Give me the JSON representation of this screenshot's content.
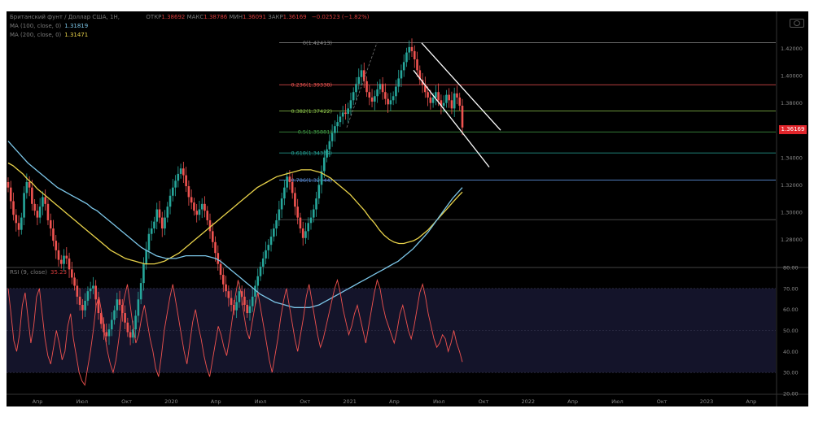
{
  "header": {
    "symbol": "Британский фунт / Доллар США, 1Н,",
    "open_label": "ОТКР",
    "open": "1.38692",
    "high_label": "МАКС",
    "high": "1.38786",
    "low_label": "МИН",
    "low": "1.36091",
    "close_label": "ЗАКР",
    "close": "1.36169",
    "change": "−0.02523",
    "change_pct": "(−1.82%)",
    "ma100_label": "MA (100, close, 0)",
    "ma100_value": "1.31819",
    "ma200_label": "MA (200, close, 0)",
    "ma200_value": "1.31471",
    "rsi_label": "RSI (9, close)",
    "rsi_value": "35.23"
  },
  "last_price_tag": "1.36169",
  "colors": {
    "up": "#26a69a",
    "down": "#ef5350",
    "ma100": "#7cc6e8",
    "ma200": "#e8d24a",
    "rsi": "#f0524f",
    "price_tag": "#e0252b"
  },
  "chart_data": [
    {
      "type": "candlestick",
      "symbol": "GBPUSD",
      "ylim": [
        1.26,
        1.44
      ],
      "y_ticks": [
        "1.42000",
        "1.40000",
        "1.38000",
        "1.36000",
        "1.34000",
        "1.32000",
        "1.30000",
        "1.28000"
      ],
      "x_ticks": [
        "Апр",
        "Июл",
        "Окт",
        "2020",
        "Апр",
        "Июл",
        "Окт",
        "2021",
        "Апр",
        "Июл",
        "Окт",
        "2022",
        "Апр",
        "Июл",
        "Окт",
        "2023",
        "Апр"
      ],
      "fib_levels": [
        {
          "label": "0(1.42413)",
          "value": 1.42413,
          "color": "#8a8a8a"
        },
        {
          "label": "0.236(1.39338)",
          "value": 1.39338,
          "color": "#ef5350"
        },
        {
          "label": "0.382(1.37422)",
          "value": 1.37422,
          "color": "#8bc34a"
        },
        {
          "label": "0.5(1.35881)",
          "value": 1.35881,
          "color": "#43a047"
        },
        {
          "label": "0.618(1.34339)",
          "value": 1.34339,
          "color": "#26a69a"
        },
        {
          "label": "0.786(1.32344)",
          "value": 1.32344,
          "color": "#5b8dd6"
        }
      ],
      "extra_levels": [
        1.2945
      ],
      "closes": [
        1.318,
        1.308,
        1.298,
        1.292,
        1.287,
        1.296,
        1.314,
        1.322,
        1.318,
        1.306,
        1.301,
        1.296,
        1.304,
        1.311,
        1.306,
        1.294,
        1.288,
        1.279,
        1.272,
        1.265,
        1.262,
        1.268,
        1.266,
        1.258,
        1.252,
        1.246,
        1.238,
        1.232,
        1.228,
        1.235,
        1.242,
        1.244,
        1.246,
        1.236,
        1.226,
        1.218,
        1.212,
        1.209,
        1.214,
        1.221,
        1.228,
        1.236,
        1.232,
        1.226,
        1.219,
        1.212,
        1.208,
        1.214,
        1.224,
        1.236,
        1.248,
        1.262,
        1.272,
        1.284,
        1.288,
        1.293,
        1.302,
        1.296,
        1.288,
        1.296,
        1.304,
        1.312,
        1.318,
        1.323,
        1.328,
        1.332,
        1.327,
        1.319,
        1.311,
        1.307,
        1.301,
        1.298,
        1.302,
        1.306,
        1.301,
        1.294,
        1.286,
        1.278,
        1.27,
        1.262,
        1.254,
        1.247,
        1.242,
        1.237,
        1.232,
        1.228,
        1.234,
        1.242,
        1.238,
        1.232,
        1.226,
        1.231,
        1.238,
        1.246,
        1.253,
        1.26,
        1.266,
        1.272,
        1.276,
        1.282,
        1.288,
        1.294,
        1.302,
        1.31,
        1.318,
        1.326,
        1.322,
        1.314,
        1.304,
        1.296,
        1.288,
        1.281,
        1.286,
        1.292,
        1.296,
        1.302,
        1.31,
        1.32,
        1.33,
        1.34,
        1.346,
        1.352,
        1.358,
        1.363,
        1.366,
        1.37,
        1.373,
        1.372,
        1.376,
        1.382,
        1.388,
        1.394,
        1.399,
        1.404,
        1.396,
        1.388,
        1.384,
        1.381,
        1.385,
        1.39,
        1.394,
        1.388,
        1.383,
        1.379,
        1.382,
        1.385,
        1.392,
        1.398,
        1.404,
        1.41,
        1.417,
        1.421,
        1.418,
        1.412,
        1.404,
        1.397,
        1.393,
        1.388,
        1.384,
        1.38,
        1.384,
        1.388,
        1.382,
        1.378,
        1.38,
        1.386,
        1.382,
        1.376,
        1.387,
        1.384,
        1.378,
        1.362
      ],
      "ma100": [
        1.352,
        1.348,
        1.344,
        1.34,
        1.336,
        1.333,
        1.33,
        1.327,
        1.324,
        1.321,
        1.318,
        1.316,
        1.314,
        1.312,
        1.31,
        1.308,
        1.306,
        1.303,
        1.301,
        1.298,
        1.295,
        1.292,
        1.289,
        1.286,
        1.283,
        1.28,
        1.277,
        1.274,
        1.272,
        1.27,
        1.268,
        1.267,
        1.266,
        1.266,
        1.266,
        1.267,
        1.268,
        1.268,
        1.268,
        1.268,
        1.268,
        1.267,
        1.266,
        1.264,
        1.261,
        1.258,
        1.255,
        1.252,
        1.249,
        1.246,
        1.243,
        1.24,
        1.238,
        1.236,
        1.234,
        1.233,
        1.232,
        1.231,
        1.23,
        1.23,
        1.23,
        1.23,
        1.231,
        1.232,
        1.234,
        1.236,
        1.238,
        1.24,
        1.242,
        1.244,
        1.246,
        1.248,
        1.25,
        1.252,
        1.254,
        1.256,
        1.258,
        1.26,
        1.262,
        1.264,
        1.267,
        1.27,
        1.273,
        1.277,
        1.281,
        1.285,
        1.29,
        1.295,
        1.3,
        1.305,
        1.31,
        1.314,
        1.318
      ],
      "ma200": [
        1.336,
        1.334,
        1.331,
        1.328,
        1.324,
        1.321,
        1.317,
        1.314,
        1.311,
        1.308,
        1.305,
        1.302,
        1.299,
        1.296,
        1.293,
        1.29,
        1.287,
        1.284,
        1.281,
        1.278,
        1.275,
        1.272,
        1.27,
        1.268,
        1.266,
        1.265,
        1.264,
        1.263,
        1.262,
        1.262,
        1.262,
        1.263,
        1.264,
        1.266,
        1.268,
        1.27,
        1.273,
        1.276,
        1.279,
        1.282,
        1.285,
        1.288,
        1.291,
        1.294,
        1.297,
        1.3,
        1.303,
        1.306,
        1.309,
        1.312,
        1.315,
        1.318,
        1.32,
        1.322,
        1.324,
        1.326,
        1.327,
        1.328,
        1.329,
        1.33,
        1.331,
        1.331,
        1.331,
        1.33,
        1.329,
        1.327,
        1.325,
        1.322,
        1.319,
        1.316,
        1.313,
        1.309,
        1.305,
        1.301,
        1.296,
        1.292,
        1.287,
        1.283,
        1.28,
        1.278,
        1.277,
        1.277,
        1.278,
        1.279,
        1.281,
        1.284,
        1.287,
        1.291,
        1.295,
        1.299,
        1.303,
        1.307,
        1.311,
        1.3147
      ]
    },
    {
      "type": "line",
      "name": "RSI (9, close)",
      "ylim": [
        20,
        80
      ],
      "y_ticks": [
        "80.00",
        "70.00",
        "60.00",
        "50.00",
        "40.00",
        "30.00",
        "20.00"
      ],
      "band": [
        30,
        70
      ],
      "values": [
        70,
        58,
        45,
        40,
        48,
        62,
        68,
        56,
        44,
        52,
        66,
        70,
        58,
        46,
        38,
        34,
        42,
        50,
        44,
        36,
        40,
        52,
        58,
        46,
        38,
        30,
        26,
        24,
        32,
        40,
        50,
        62,
        66,
        58,
        48,
        40,
        34,
        30,
        36,
        46,
        58,
        66,
        72,
        62,
        52,
        44,
        48,
        56,
        62,
        54,
        46,
        40,
        32,
        28,
        38,
        50,
        58,
        66,
        72,
        64,
        56,
        48,
        40,
        34,
        44,
        54,
        60,
        52,
        46,
        38,
        32,
        28,
        36,
        44,
        52,
        48,
        42,
        38,
        46,
        56,
        66,
        74,
        68,
        58,
        50,
        46,
        54,
        62,
        68,
        60,
        52,
        44,
        36,
        30,
        38,
        46,
        56,
        64,
        70,
        62,
        54,
        46,
        40,
        48,
        56,
        66,
        72,
        64,
        56,
        48,
        42,
        46,
        52,
        58,
        64,
        70,
        74,
        68,
        60,
        54,
        48,
        52,
        58,
        62,
        56,
        50,
        44,
        52,
        60,
        68,
        74,
        70,
        62,
        56,
        52,
        48,
        44,
        50,
        58,
        62,
        56,
        50,
        46,
        52,
        60,
        68,
        72,
        66,
        58,
        52,
        46,
        42,
        44,
        48,
        46,
        40,
        44,
        50,
        44,
        40,
        35
      ]
    }
  ]
}
